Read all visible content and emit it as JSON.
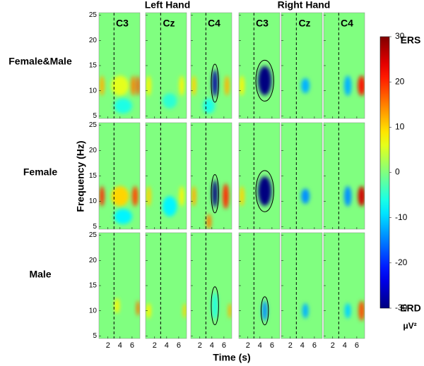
{
  "chart_data": {
    "type": "heatmap-grid",
    "group_titles": [
      "Left Hand",
      "Right Hand"
    ],
    "channels": [
      "C3",
      "Cz",
      "C4",
      "C3",
      "Cz",
      "C4"
    ],
    "row_labels": [
      "Female&Male",
      "Female",
      "Male"
    ],
    "xlabel": "Time (s)",
    "ylabel": "Frequency (Hz)",
    "xlim": [
      0.5,
      7.3
    ],
    "xticks": [
      2,
      4,
      6
    ],
    "ylim": [
      4.5,
      25.5
    ],
    "yticks": [
      5,
      10,
      15,
      20,
      25
    ],
    "event_time": 3,
    "colormap": "jet",
    "colorbar": {
      "clim": [
        -30,
        30
      ],
      "ticks": [
        30,
        20,
        10,
        0,
        -10,
        -20,
        -30
      ],
      "top_label": "ERS",
      "bottom_label": "ERD",
      "unit": "μV²"
    },
    "panels": [
      [
        {
          "ellipse": false,
          "blobs": [
            {
              "t": 1,
              "f": 11,
              "dt": 0.4,
              "df": 2,
              "value": 12
            },
            {
              "t": 4,
              "f": 11,
              "dt": 1.5,
              "df": 2,
              "value": 6
            },
            {
              "t": 6.2,
              "f": 11,
              "dt": 0.4,
              "df": 2,
              "value": 15
            },
            {
              "t": 7,
              "f": 11,
              "dt": 0.3,
              "df": 2,
              "value": 18
            },
            {
              "t": 4.5,
              "f": 7,
              "dt": 1.5,
              "df": 1.5,
              "value": -6
            }
          ]
        },
        {
          "ellipse": false,
          "blobs": [
            {
              "t": 1,
              "f": 11,
              "dt": 0.4,
              "df": 2,
              "value": 8
            },
            {
              "t": 4.5,
              "f": 8,
              "dt": 1.2,
              "df": 1.5,
              "value": -5
            },
            {
              "t": 6.5,
              "f": 11,
              "dt": 0.4,
              "df": 2,
              "value": 8
            }
          ]
        },
        {
          "ellipse": true,
          "blobs": [
            {
              "t": 4.5,
              "f": 11.5,
              "dt": 0.45,
              "df": 2.7,
              "value": -28
            },
            {
              "t": 1,
              "f": 11,
              "dt": 0.4,
              "df": 2,
              "value": 10
            },
            {
              "t": 6.5,
              "f": 11,
              "dt": 0.4,
              "df": 2,
              "value": 12
            },
            {
              "t": 3.5,
              "f": 7,
              "dt": 1,
              "df": 1.5,
              "value": -6
            }
          ]
        },
        {
          "ellipse": true,
          "blobs": [
            {
              "t": 4.8,
              "f": 12,
              "dt": 1.1,
              "df": 2.9,
              "value": -30
            },
            {
              "t": 1,
              "f": 11,
              "dt": 0.4,
              "df": 2,
              "value": 8
            }
          ]
        },
        {
          "ellipse": false,
          "blobs": [
            {
              "t": 4.5,
              "f": 11,
              "dt": 0.7,
              "df": 1.5,
              "value": -12
            }
          ]
        },
        {
          "ellipse": false,
          "blobs": [
            {
              "t": 6.8,
              "f": 11,
              "dt": 0.6,
              "df": 2,
              "value": 22
            },
            {
              "t": 4.5,
              "f": 11,
              "dt": 0.6,
              "df": 2,
              "value": -12
            }
          ]
        }
      ],
      [
        {
          "ellipse": false,
          "blobs": [
            {
              "t": 1,
              "f": 11,
              "dt": 0.4,
              "df": 2,
              "value": 20
            },
            {
              "t": 4,
              "f": 11,
              "dt": 1.5,
              "df": 2,
              "value": 10
            },
            {
              "t": 6.5,
              "f": 11,
              "dt": 0.5,
              "df": 2,
              "value": 18
            },
            {
              "t": 4.5,
              "f": 7,
              "dt": 1.5,
              "df": 1.5,
              "value": -8
            }
          ]
        },
        {
          "ellipse": false,
          "blobs": [
            {
              "t": 1,
              "f": 11,
              "dt": 0.4,
              "df": 2,
              "value": 10
            },
            {
              "t": 4.5,
              "f": 9,
              "dt": 1.2,
              "df": 2,
              "value": -8
            },
            {
              "t": 6.5,
              "f": 11,
              "dt": 0.4,
              "df": 2,
              "value": 8
            }
          ]
        },
        {
          "ellipse": true,
          "blobs": [
            {
              "t": 4.5,
              "f": 11.5,
              "dt": 0.45,
              "df": 2.7,
              "value": -30
            },
            {
              "t": 1,
              "f": 11,
              "dt": 0.4,
              "df": 2,
              "value": 12
            },
            {
              "t": 6.3,
              "f": 11,
              "dt": 0.5,
              "df": 2.5,
              "value": 20
            },
            {
              "t": 3.5,
              "f": 6,
              "dt": 0.4,
              "df": 1.5,
              "value": 15
            }
          ]
        },
        {
          "ellipse": true,
          "blobs": [
            {
              "t": 4.8,
              "f": 12,
              "dt": 1.1,
              "df": 2.9,
              "value": -32
            },
            {
              "t": 1,
              "f": 11,
              "dt": 0.4,
              "df": 2,
              "value": 10
            }
          ]
        },
        {
          "ellipse": false,
          "blobs": [
            {
              "t": 4.5,
              "f": 11,
              "dt": 0.7,
              "df": 1.5,
              "value": -14
            }
          ]
        },
        {
          "ellipse": false,
          "blobs": [
            {
              "t": 6.8,
              "f": 11,
              "dt": 0.6,
              "df": 2,
              "value": 25
            },
            {
              "t": 4.5,
              "f": 11,
              "dt": 0.6,
              "df": 2,
              "value": -14
            }
          ]
        }
      ],
      [
        {
          "ellipse": false,
          "blobs": [
            {
              "t": 7,
              "f": 10.5,
              "dt": 0.3,
              "df": 1.5,
              "value": 16
            },
            {
              "t": 3.5,
              "f": 11,
              "dt": 0.4,
              "df": 1.5,
              "value": 8
            }
          ]
        },
        {
          "ellipse": false,
          "blobs": [
            {
              "t": 1,
              "f": 10,
              "dt": 0.4,
              "df": 1.5,
              "value": 8
            },
            {
              "t": 7,
              "f": 10,
              "dt": 0.3,
              "df": 1.5,
              "value": 10
            }
          ]
        },
        {
          "ellipse": true,
          "blobs": [
            {
              "t": 4.5,
              "f": 11,
              "dt": 0.45,
              "df": 2.7,
              "value": -6
            },
            {
              "t": 7,
              "f": 10,
              "dt": 0.3,
              "df": 1.5,
              "value": 12
            }
          ]
        },
        {
          "ellipse": true,
          "blobs": [
            {
              "t": 4.8,
              "f": 10,
              "dt": 0.45,
              "df": 2,
              "value": -14
            }
          ]
        },
        {
          "ellipse": false,
          "blobs": [
            {
              "t": 4.5,
              "f": 10,
              "dt": 0.5,
              "df": 1.5,
              "value": -12
            }
          ]
        },
        {
          "ellipse": false,
          "blobs": [
            {
              "t": 6.8,
              "f": 10,
              "dt": 0.5,
              "df": 2,
              "value": 18
            },
            {
              "t": 4.5,
              "f": 10,
              "dt": 0.5,
              "df": 1.5,
              "value": -10
            }
          ]
        }
      ]
    ]
  }
}
